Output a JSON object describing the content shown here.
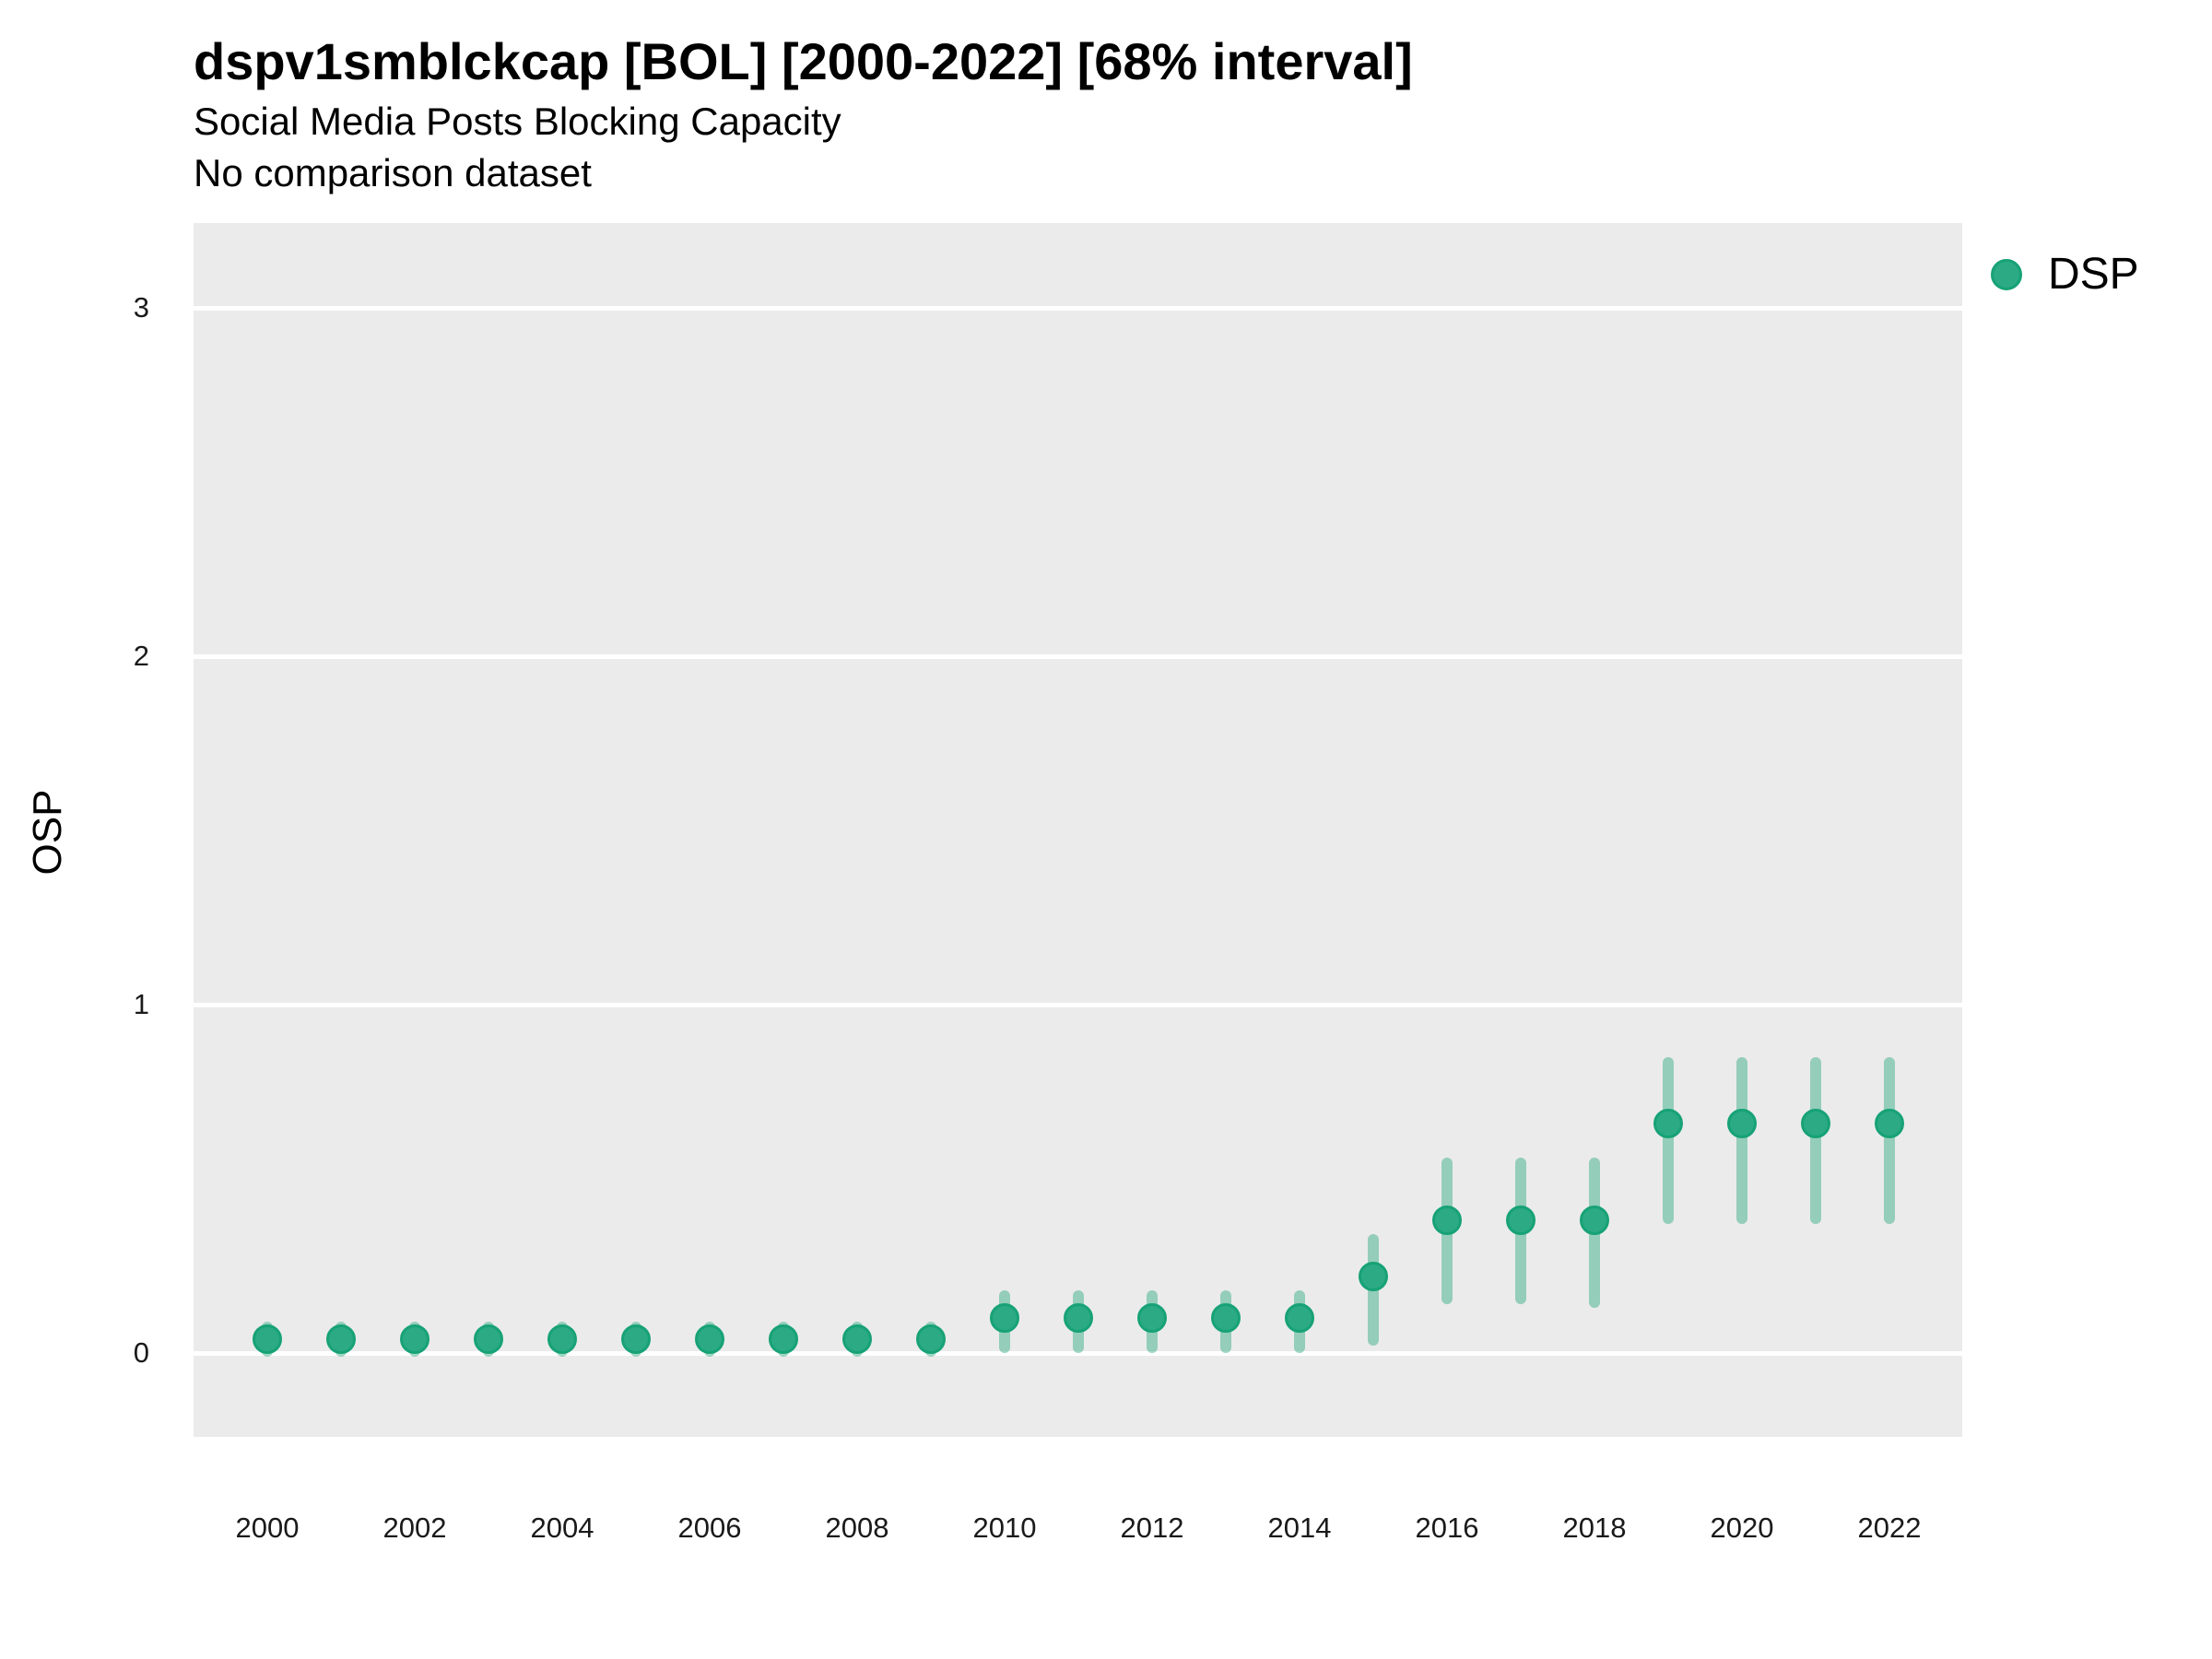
{
  "header": {
    "title": "dspv1smblckcap [BOL] [2000-2022] [68% interval]",
    "subtitle": "Social Media Posts Blocking Capacity",
    "comparison_note": "No comparison dataset"
  },
  "axes": {
    "y_label": "OSP",
    "x_label": ""
  },
  "legend": {
    "items": [
      {
        "label": "DSP"
      }
    ]
  },
  "colors": {
    "point_fill": "#2baa83",
    "point_stroke": "#17a276",
    "interval_bar": "rgba(42, 168, 126, 0.45)",
    "panel_background": "#ebebeb",
    "gridline": "#ffffff",
    "text": "#000000"
  },
  "chart_data": {
    "type": "scatter",
    "title": "dspv1smblckcap [BOL] [2000-2022] [68% interval]",
    "subtitle": "Social Media Posts Blocking Capacity",
    "note": "No comparison dataset",
    "interval": "68%",
    "xlabel": "",
    "ylabel": "OSP",
    "legend_position": "right",
    "grid": "major-horizontal-white",
    "x": [
      2000,
      2001,
      2002,
      2003,
      2004,
      2005,
      2006,
      2007,
      2008,
      2009,
      2010,
      2011,
      2012,
      2013,
      2014,
      2015,
      2016,
      2017,
      2018,
      2019,
      2020,
      2021,
      2022
    ],
    "series": [
      {
        "name": "DSP",
        "values": [
          0.04,
          0.04,
          0.04,
          0.04,
          0.04,
          0.04,
          0.04,
          0.04,
          0.04,
          0.04,
          0.1,
          0.1,
          0.1,
          0.1,
          0.1,
          0.22,
          0.38,
          0.38,
          0.38,
          0.66,
          0.66,
          0.66,
          0.66
        ],
        "lower": [
          -0.01,
          -0.01,
          -0.01,
          -0.01,
          -0.01,
          -0.01,
          -0.01,
          -0.01,
          -0.01,
          -0.01,
          0.0,
          0.0,
          0.0,
          0.0,
          0.0,
          0.02,
          0.14,
          0.14,
          0.13,
          0.37,
          0.37,
          0.37,
          0.37
        ],
        "upper": [
          0.09,
          0.09,
          0.09,
          0.09,
          0.09,
          0.09,
          0.09,
          0.09,
          0.09,
          0.09,
          0.18,
          0.18,
          0.18,
          0.18,
          0.18,
          0.34,
          0.56,
          0.56,
          0.56,
          0.85,
          0.85,
          0.85,
          0.85
        ]
      }
    ],
    "yticks": [
      0,
      1,
      2,
      3
    ],
    "xticks": [
      2000,
      2002,
      2004,
      2006,
      2008,
      2010,
      2012,
      2014,
      2016,
      2018,
      2020,
      2022
    ],
    "ylim": [
      -0.24,
      3.24
    ],
    "xlim": [
      1999,
      2023
    ]
  }
}
